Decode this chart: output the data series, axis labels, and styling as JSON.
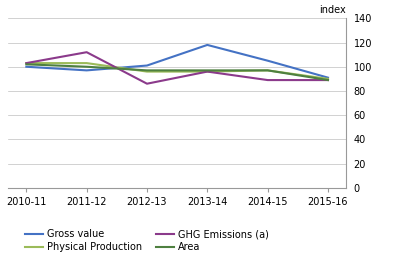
{
  "x_labels": [
    "2010-11",
    "2011-12",
    "2012-13",
    "2013-14",
    "2014-15",
    "2015-16"
  ],
  "series": {
    "Gross value": {
      "values": [
        100,
        97,
        101,
        118,
        105,
        91
      ],
      "color": "#4472C4",
      "linewidth": 1.5
    },
    "Physical Production": {
      "values": [
        103,
        103,
        96,
        96,
        97,
        90
      ],
      "color": "#9BBB59",
      "linewidth": 1.5
    },
    "GHG Emissions (a)": {
      "values": [
        103,
        112,
        86,
        96,
        89,
        89
      ],
      "color": "#8B3A8B",
      "linewidth": 1.5
    },
    "Area": {
      "values": [
        102,
        100,
        97,
        97,
        97,
        89
      ],
      "color": "#4E8040",
      "linewidth": 1.5
    }
  },
  "ylabel": "index",
  "ylim": [
    0,
    140
  ],
  "yticks": [
    0,
    20,
    40,
    60,
    80,
    100,
    120,
    140
  ],
  "background_color": "#FFFFFF",
  "grid_color": "#BFBFBF",
  "legend_order": [
    "Gross value",
    "Physical Production",
    "GHG Emissions (a)",
    "Area"
  ]
}
